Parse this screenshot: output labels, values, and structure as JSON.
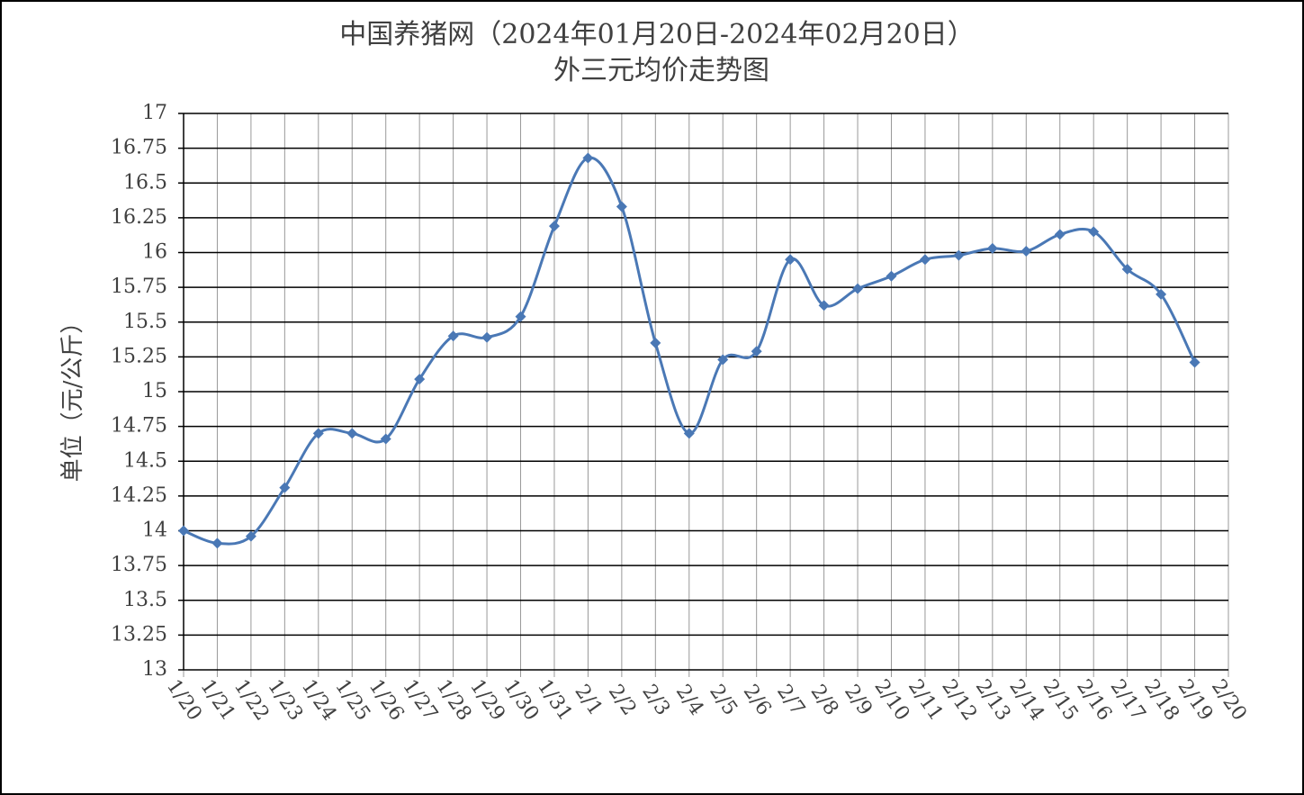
{
  "chart_data": {
    "type": "line",
    "title": "中国养猪网（2024年01月20日-2024年02月20日）",
    "subtitle": "外三元均价走势图",
    "y_label": "单位（元/公斤）",
    "categories": [
      "1/20",
      "1/21",
      "1/22",
      "1/23",
      "1/24",
      "1/25",
      "1/26",
      "1/27",
      "1/28",
      "1/29",
      "1/30",
      "1/31",
      "2/1",
      "2/2",
      "2/3",
      "2/4",
      "2/5",
      "2/6",
      "2/7",
      "2/8",
      "2/9",
      "2/10",
      "2/11",
      "2/12",
      "2/13",
      "2/14",
      "2/15",
      "2/16",
      "2/17",
      "2/18",
      "2/19",
      "2/20"
    ],
    "values": [
      14.0,
      13.91,
      13.96,
      14.31,
      14.7,
      14.7,
      14.66,
      15.09,
      15.4,
      15.39,
      15.54,
      16.19,
      16.68,
      16.33,
      15.35,
      14.7,
      15.23,
      15.29,
      15.95,
      15.62,
      15.74,
      15.83,
      15.95,
      15.98,
      16.03,
      16.01,
      16.13,
      16.15,
      15.88,
      15.7,
      15.21,
      null
    ],
    "color": "#4a78b5",
    "ylim": [
      13,
      17
    ],
    "yticks": [
      13,
      13.25,
      13.5,
      13.75,
      14,
      14.25,
      14.5,
      14.75,
      15,
      15.25,
      15.5,
      15.75,
      16,
      16.25,
      16.5,
      16.75,
      17
    ],
    "grid": true
  }
}
